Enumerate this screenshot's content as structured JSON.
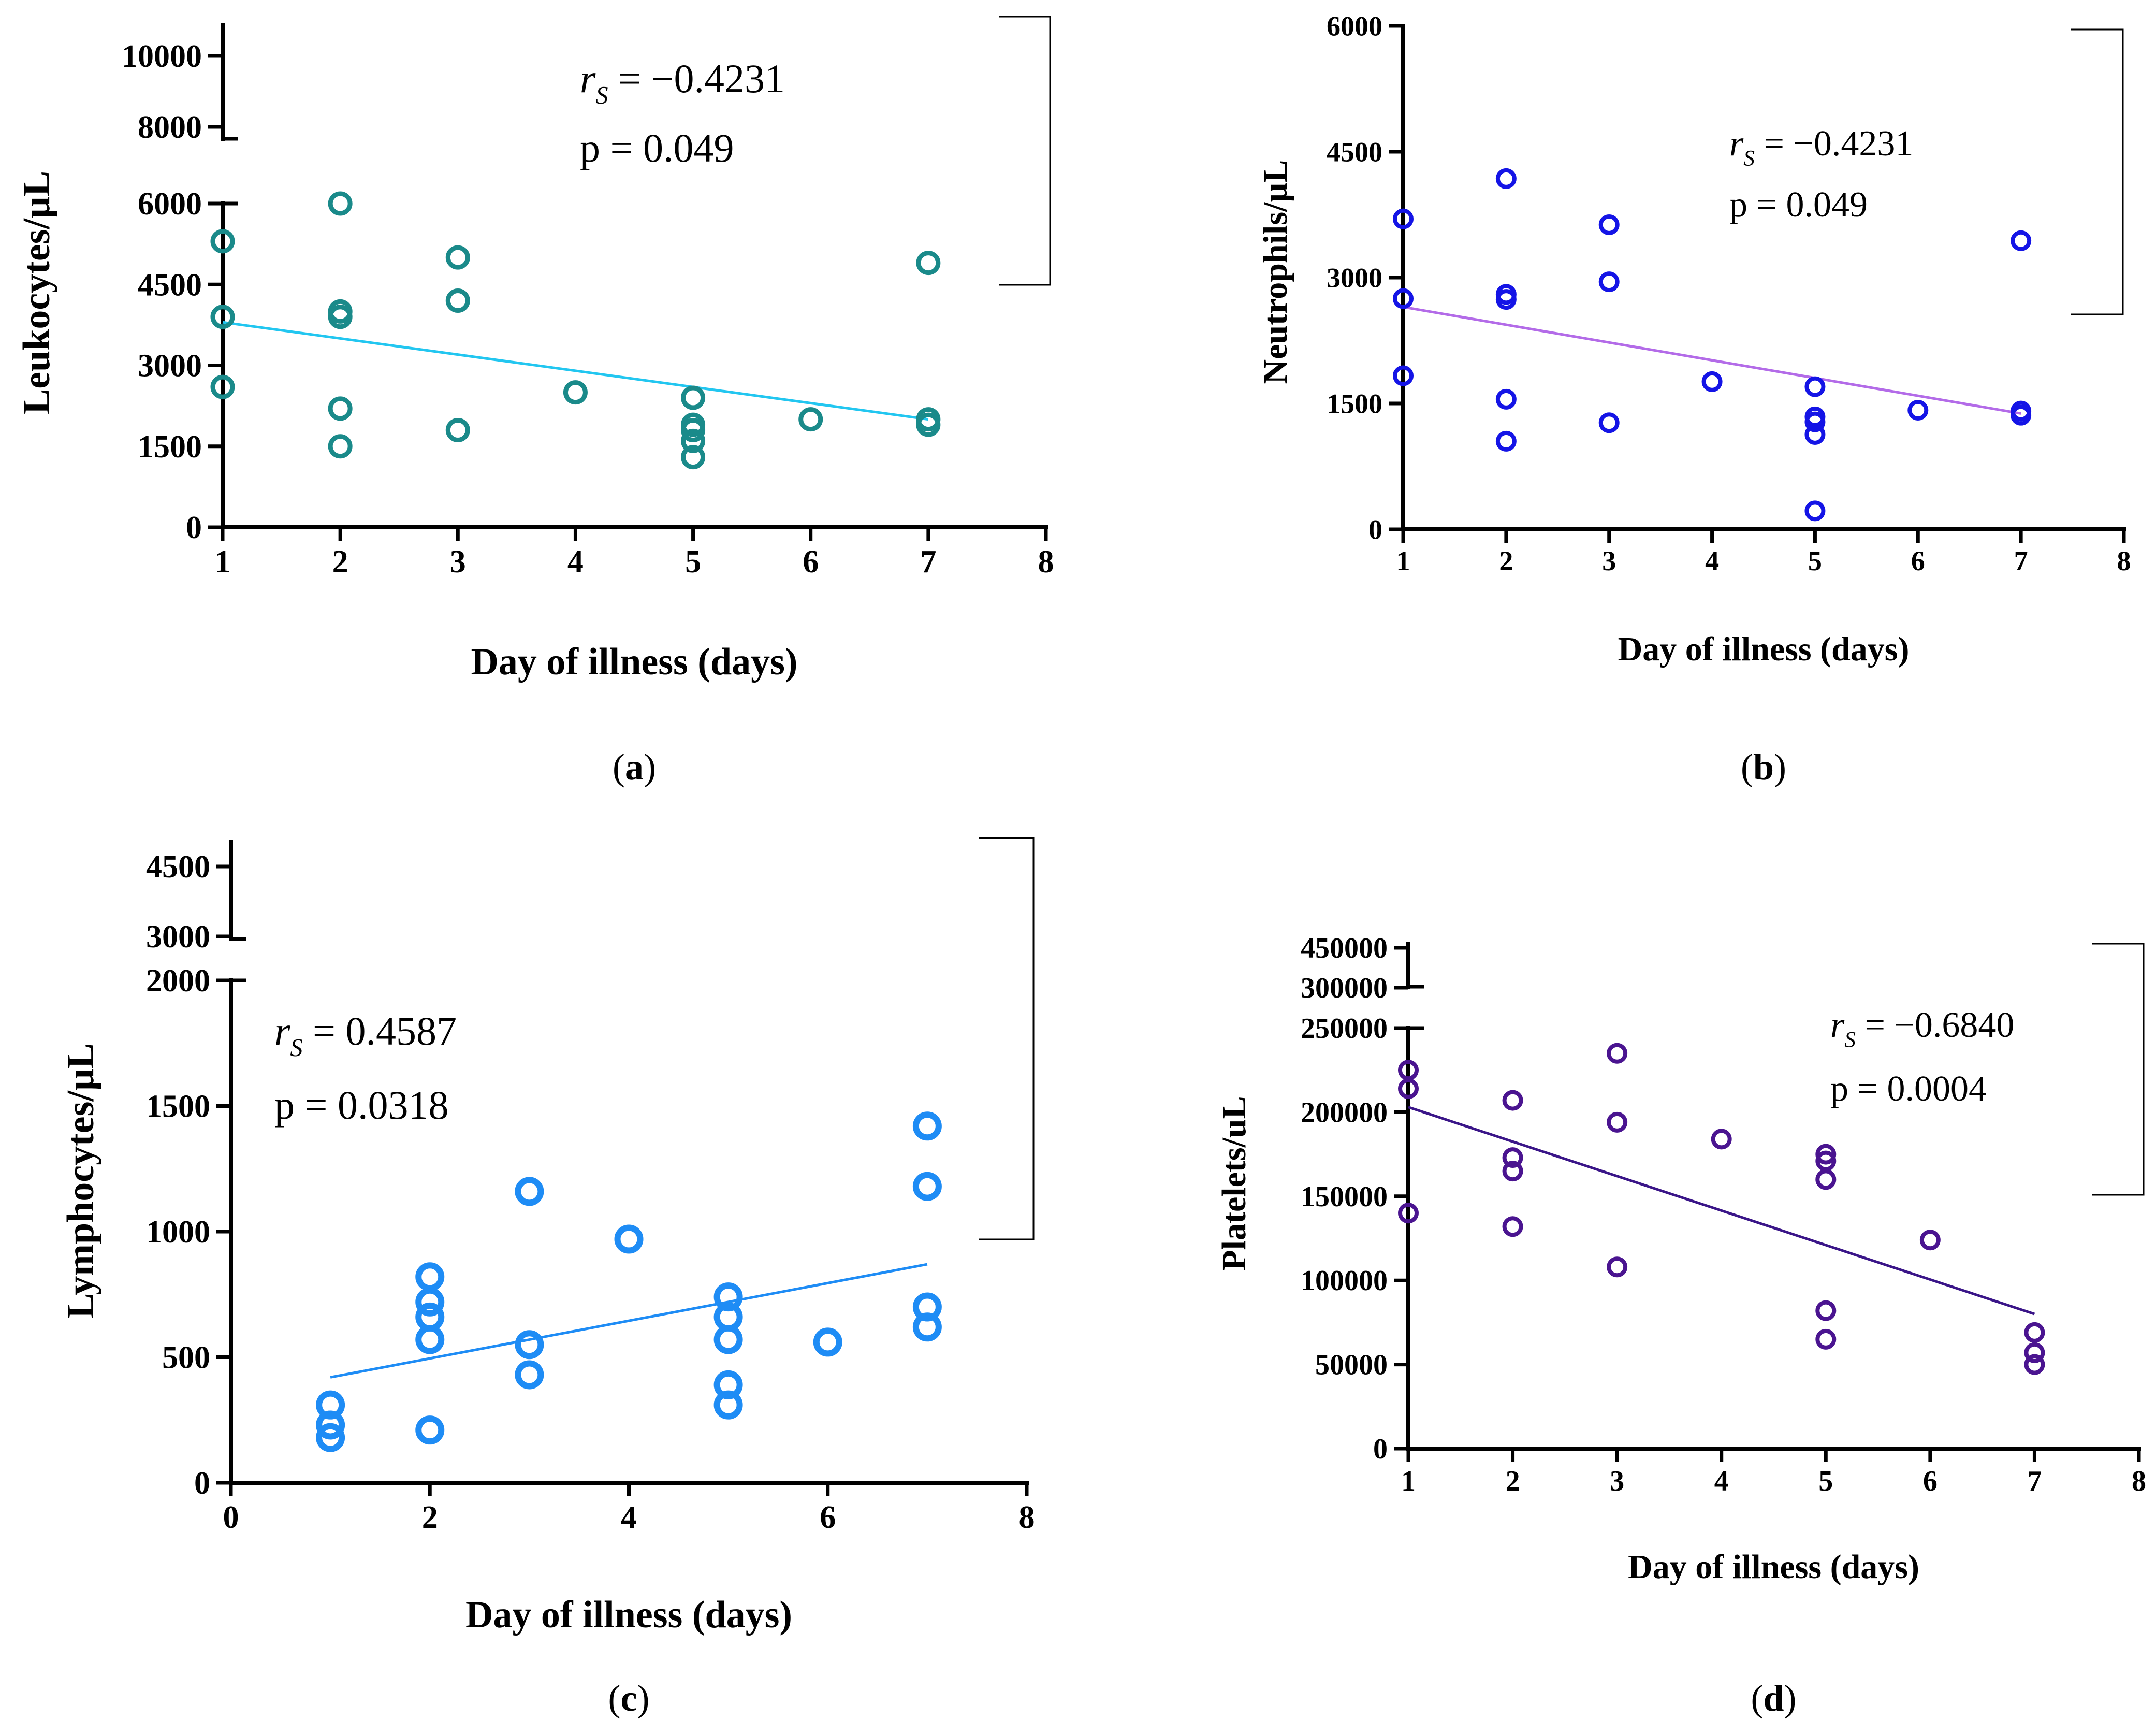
{
  "chart_data": [
    {
      "id": "a",
      "type": "scatter",
      "panel_label": "a",
      "xlabel": "Day of illness (days)",
      "ylabel": "Leukocytes/µL",
      "xlim": [
        1,
        8
      ],
      "xticks": [
        1,
        2,
        3,
        4,
        5,
        6,
        7,
        8
      ],
      "ylim": [
        0,
        6000
      ],
      "yticks": [
        0,
        1500,
        3000,
        4500,
        6000
      ],
      "ybreak_ticks": [
        8000,
        10000
      ],
      "color": "#1a8a8a",
      "line_color": "#22c6f0",
      "points": [
        {
          "x": 1,
          "y": 5300
        },
        {
          "x": 1,
          "y": 3900
        },
        {
          "x": 1,
          "y": 2600
        },
        {
          "x": 2,
          "y": 6000
        },
        {
          "x": 2,
          "y": 4000
        },
        {
          "x": 2,
          "y": 3900
        },
        {
          "x": 2,
          "y": 2200
        },
        {
          "x": 2,
          "y": 1500
        },
        {
          "x": 3,
          "y": 5000
        },
        {
          "x": 3,
          "y": 4200
        },
        {
          "x": 3,
          "y": 1800
        },
        {
          "x": 4,
          "y": 2500
        },
        {
          "x": 5,
          "y": 2400
        },
        {
          "x": 5,
          "y": 1900
        },
        {
          "x": 5,
          "y": 1800
        },
        {
          "x": 5,
          "y": 1600
        },
        {
          "x": 5,
          "y": 1300
        },
        {
          "x": 6,
          "y": 2000
        },
        {
          "x": 7,
          "y": 4900
        },
        {
          "x": 7,
          "y": 2000
        },
        {
          "x": 7,
          "y": 1900
        }
      ],
      "fit_line": [
        {
          "x": 1,
          "y": 3800
        },
        {
          "x": 7,
          "y": 2000
        }
      ],
      "stat_r_label": "r",
      "stat_r_sub": "S",
      "stat_r_value": " = −0.4231",
      "stat_p": "p = 0.049"
    },
    {
      "id": "b",
      "type": "scatter",
      "panel_label": "b",
      "xlabel": "Day of illness (days)",
      "ylabel": "Neutrophils/µL",
      "xlim": [
        1,
        8
      ],
      "xticks": [
        1,
        2,
        3,
        4,
        5,
        6,
        7,
        8
      ],
      "ylim": [
        0,
        6000
      ],
      "yticks": [
        0,
        1500,
        3000,
        4500,
        6000
      ],
      "ybreak_ticks": [],
      "color": "#1414e6",
      "line_color": "#b36be8",
      "points": [
        {
          "x": 1,
          "y": 3700
        },
        {
          "x": 1,
          "y": 2750
        },
        {
          "x": 1,
          "y": 1830
        },
        {
          "x": 2,
          "y": 4180
        },
        {
          "x": 2,
          "y": 2800
        },
        {
          "x": 2,
          "y": 2740
        },
        {
          "x": 2,
          "y": 1550
        },
        {
          "x": 2,
          "y": 1050
        },
        {
          "x": 3,
          "y": 3630
        },
        {
          "x": 3,
          "y": 2950
        },
        {
          "x": 3,
          "y": 1270
        },
        {
          "x": 4,
          "y": 1760
        },
        {
          "x": 5,
          "y": 1700
        },
        {
          "x": 5,
          "y": 1340
        },
        {
          "x": 5,
          "y": 1280
        },
        {
          "x": 5,
          "y": 1130
        },
        {
          "x": 5,
          "y": 220
        },
        {
          "x": 6,
          "y": 1420
        },
        {
          "x": 7,
          "y": 3440
        },
        {
          "x": 7,
          "y": 1410
        },
        {
          "x": 7,
          "y": 1360
        }
      ],
      "fit_line": [
        {
          "x": 1,
          "y": 2650
        },
        {
          "x": 7,
          "y": 1380
        }
      ],
      "stat_r_label": "r",
      "stat_r_sub": "S",
      "stat_r_value": " = −0.4231",
      "stat_p": "p = 0.049"
    },
    {
      "id": "c",
      "type": "scatter",
      "panel_label": "c",
      "xlabel": "Day of illness (days)",
      "ylabel": "Lymphocytes/µL",
      "xlim": [
        0,
        8
      ],
      "xticks": [
        0,
        2,
        4,
        6,
        8
      ],
      "ylim": [
        0,
        2000
      ],
      "yticks": [
        0,
        500,
        1000,
        1500,
        2000
      ],
      "ybreak_ticks": [
        3000,
        4500
      ],
      "color": "#1e8cf5",
      "line_color": "#1e8cf5",
      "points": [
        {
          "x": 1,
          "y": 310
        },
        {
          "x": 1,
          "y": 230
        },
        {
          "x": 1,
          "y": 180
        },
        {
          "x": 2,
          "y": 820
        },
        {
          "x": 2,
          "y": 720
        },
        {
          "x": 2,
          "y": 660
        },
        {
          "x": 2,
          "y": 570
        },
        {
          "x": 2,
          "y": 210
        },
        {
          "x": 3,
          "y": 1160
        },
        {
          "x": 3,
          "y": 550
        },
        {
          "x": 3,
          "y": 430
        },
        {
          "x": 4,
          "y": 970
        },
        {
          "x": 5,
          "y": 740
        },
        {
          "x": 5,
          "y": 660
        },
        {
          "x": 5,
          "y": 570
        },
        {
          "x": 5,
          "y": 390
        },
        {
          "x": 5,
          "y": 310
        },
        {
          "x": 6,
          "y": 560
        },
        {
          "x": 7,
          "y": 1420
        },
        {
          "x": 7,
          "y": 1180
        },
        {
          "x": 7,
          "y": 700
        },
        {
          "x": 7,
          "y": 620
        }
      ],
      "fit_line": [
        {
          "x": 1,
          "y": 420
        },
        {
          "x": 7,
          "y": 870
        }
      ],
      "stat_r_label": "r",
      "stat_r_sub": "S",
      "stat_r_value": " = 0.4587",
      "stat_p": "p = 0.0318"
    },
    {
      "id": "d",
      "type": "scatter",
      "panel_label": "d",
      "xlabel": "Day of illness (days)",
      "ylabel": "Platelets/uL",
      "xlim": [
        1,
        8
      ],
      "xticks": [
        1,
        2,
        3,
        4,
        5,
        6,
        7,
        8
      ],
      "ylim": [
        0,
        250000
      ],
      "yticks": [
        0,
        50000,
        100000,
        150000,
        200000,
        250000
      ],
      "ybreak_ticks": [
        300000,
        450000
      ],
      "color": "#4a1490",
      "line_color": "#3a1588",
      "points": [
        {
          "x": 1,
          "y": 225000
        },
        {
          "x": 1,
          "y": 214000
        },
        {
          "x": 1,
          "y": 140000
        },
        {
          "x": 2,
          "y": 207000
        },
        {
          "x": 2,
          "y": 173000
        },
        {
          "x": 2,
          "y": 165000
        },
        {
          "x": 2,
          "y": 132000
        },
        {
          "x": 3,
          "y": 235000
        },
        {
          "x": 3,
          "y": 194000
        },
        {
          "x": 3,
          "y": 108000
        },
        {
          "x": 4,
          "y": 184000
        },
        {
          "x": 5,
          "y": 175000
        },
        {
          "x": 5,
          "y": 171000
        },
        {
          "x": 5,
          "y": 160000
        },
        {
          "x": 5,
          "y": 82000
        },
        {
          "x": 5,
          "y": 65000
        },
        {
          "x": 6,
          "y": 124000
        },
        {
          "x": 7,
          "y": 69000
        },
        {
          "x": 7,
          "y": 57000
        },
        {
          "x": 7,
          "y": 50000
        }
      ],
      "fit_line": [
        {
          "x": 1,
          "y": 203000
        },
        {
          "x": 7,
          "y": 80000
        }
      ],
      "stat_r_label": "r",
      "stat_r_sub": "S",
      "stat_r_value": " = −0.6840",
      "stat_p": "p = 0.0004"
    }
  ]
}
